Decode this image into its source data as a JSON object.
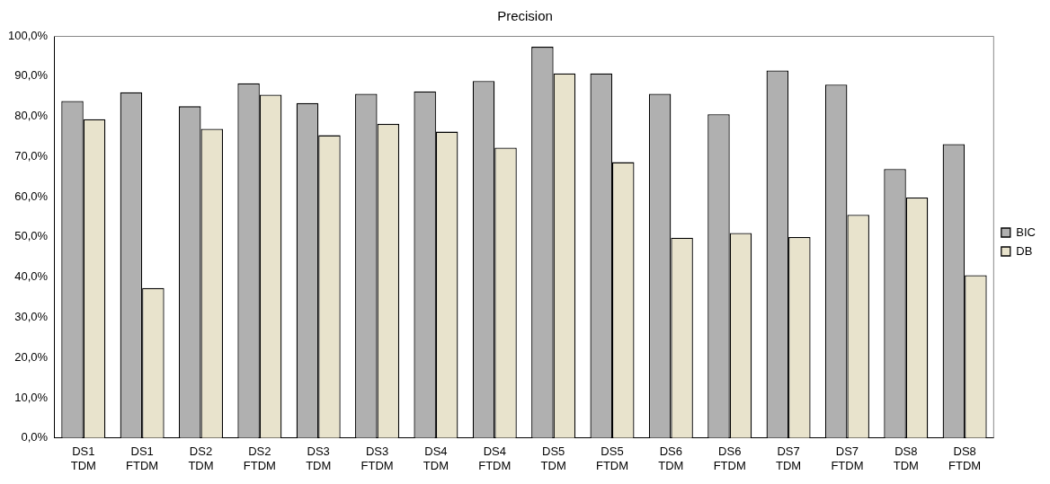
{
  "chart_data": {
    "type": "bar",
    "title": "Precision",
    "categories": [
      "DS1\nTDM",
      "DS1\nFTDM",
      "DS2\nTDM",
      "DS2\nFTDM",
      "DS3\nTDM",
      "DS3\nFTDM",
      "DS4\nTDM",
      "DS4\nFTDM",
      "DS5\nTDM",
      "DS5\nFTDM",
      "DS6\nTDM",
      "DS6\nFTDM",
      "DS7\nTDM",
      "DS7\nFTDM",
      "DS8\nTDM",
      "DS8\nFTDM"
    ],
    "series": [
      {
        "name": "BIC",
        "color": "#b0b0b0",
        "values": [
          83.8,
          86.0,
          82.5,
          88.2,
          83.3,
          85.6,
          86.2,
          88.8,
          97.3,
          90.7,
          85.6,
          80.5,
          91.4,
          87.9,
          66.9,
          73.1
        ]
      },
      {
        "name": "DB",
        "color": "#e8e3cc",
        "values": [
          79.3,
          37.3,
          76.9,
          85.4,
          75.3,
          78.1,
          76.2,
          72.2,
          90.7,
          68.6,
          49.8,
          51.0,
          50.0,
          55.5,
          59.8,
          40.5
        ]
      }
    ],
    "ylim": [
      0,
      100
    ],
    "yticks": [
      {
        "value": 0,
        "label": "0,0%"
      },
      {
        "value": 10,
        "label": "10,0%"
      },
      {
        "value": 20,
        "label": "20,0%"
      },
      {
        "value": 30,
        "label": "30,0%"
      },
      {
        "value": 40,
        "label": "40,0%"
      },
      {
        "value": 50,
        "label": "50,0%"
      },
      {
        "value": 60,
        "label": "60,0%"
      },
      {
        "value": 70,
        "label": "70,0%"
      },
      {
        "value": 80,
        "label": "80,0%"
      },
      {
        "value": 90,
        "label": "90,0%"
      },
      {
        "value": 100,
        "label": "100,0%"
      }
    ],
    "grid": false,
    "legend": "right"
  }
}
